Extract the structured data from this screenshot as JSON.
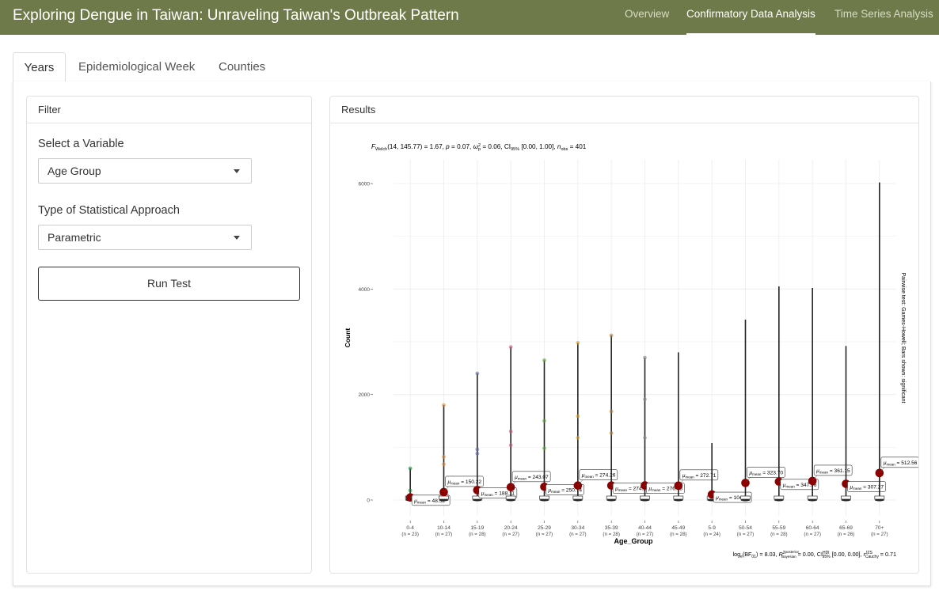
{
  "app": {
    "title": "Exploring Dengue in Taiwan: Unraveling Taiwan's Outbreak Pattern",
    "nav": [
      "Overview",
      "Confirmatory Data Analysis",
      "Time Series Analysis"
    ],
    "active_nav": "Confirmatory Data Analysis"
  },
  "tabs": [
    "Years",
    "Epidemiological Week",
    "Counties"
  ],
  "active_tab": "Years",
  "filter": {
    "header": "Filter",
    "variable_label": "Select a Variable",
    "variable_value": "Age Group",
    "approach_label": "Type of Statistical Approach",
    "approach_value": "Parametric",
    "run_label": "Run Test"
  },
  "results": {
    "header": "Results",
    "chart_data": {
      "type": "violin-box-scatter",
      "subtitle_parts": {
        "stat": "F",
        "stat_sub": "Welch",
        "args": "(14, 145.77) = 1.67, ",
        "p_label": "p",
        "p_val": " = 0.07, ",
        "es_symbol": "ω",
        "es_sub": "p",
        "es_sup": "2",
        "es_val": " = 0.06, CI",
        "ci_sub": "95%",
        "ci_val": " [0.00, 1.00], ",
        "n_label": "n",
        "n_sub": "obs",
        "n_val": " = 401"
      },
      "caption_parts": {
        "pre": "log",
        "pre_sub": "e",
        "bf": "(BF",
        "bf_sub": "01",
        "mid": ") = 8.03, ",
        "r_symbol": "R",
        "r_sup": "2",
        "r_sup2": "posterior",
        "r_sub": "Bayesian",
        "r_val": " = 0.00, CI",
        "ci_sup": "HDI",
        "ci_sub": "95%",
        "ci_val": " [0.00, 0.00], ",
        "rc": "r",
        "rc_sup": "JZS",
        "rc_sub": "Cauchy",
        "rc_val": " = 0.71"
      },
      "xlabel": "Age_Group",
      "ylabel": "Count",
      "right_label": "Pairwise test: Games-Howell; Bars shown: significant",
      "y_ticks": [
        0,
        2000,
        4000,
        6000
      ],
      "ylim": [
        -300,
        6300
      ],
      "mean_label_prefix": "μ",
      "mean_label_sub": "mean",
      "groups": [
        {
          "name": "0-4",
          "n": "(n = 23)",
          "max": 600,
          "mean": 48.52,
          "mean_text": "48.52",
          "points": [
            600,
            180,
            100
          ],
          "color": "#1b8a3c",
          "label_side": "below"
        },
        {
          "name": "10-14",
          "n": "(n = 27)",
          "max": 1800,
          "mean": 150.22,
          "mean_text": "150.22",
          "points": [
            1800,
            820,
            680
          ],
          "color": "#d9853b",
          "label_side": "above"
        },
        {
          "name": "15-19",
          "n": "(n = 28)",
          "max": 2400,
          "mean": 188.11,
          "mean_text": "188.11",
          "points": [
            2400,
            960,
            880
          ],
          "color": "#5c6aa8",
          "label_side": "below"
        },
        {
          "name": "20-24",
          "n": "(n = 27)",
          "max": 2900,
          "mean": 243.07,
          "mean_text": "243.07",
          "points": [
            2900,
            1300,
            1040
          ],
          "color": "#c4557f",
          "label_side": "above"
        },
        {
          "name": "25-29",
          "n": "(n = 27)",
          "max": 2650,
          "mean": 250.74,
          "mean_text": "250.74",
          "points": [
            2650,
            1500,
            980
          ],
          "color": "#5ea13a",
          "label_side": "below"
        },
        {
          "name": "30-34",
          "n": "(n = 27)",
          "max": 2980,
          "mean": 274.26,
          "mean_text": "274.26",
          "points": [
            2980,
            1590,
            1180
          ],
          "color": "#d5a21e",
          "label_side": "above"
        },
        {
          "name": "35-39",
          "n": "(n = 28)",
          "max": 3120,
          "mean": 274.28,
          "mean_text": "274.28",
          "points": [
            3120,
            1680,
            1270
          ],
          "color": "#b08140",
          "label_side": "below"
        },
        {
          "name": "40-44",
          "n": "(n = 27)",
          "max": 2700,
          "mean": 276.48,
          "mean_text": "276.48",
          "points": [
            2700,
            1910,
            1180
          ],
          "color": "#888888",
          "label_side": "below"
        },
        {
          "name": "45-49",
          "n": "(n = 28)",
          "max": 2800,
          "mean": 272.71,
          "mean_text": "272.71",
          "points": [],
          "color": "#333333",
          "label_side": "above"
        },
        {
          "name": "5-9",
          "n": "(n = 24)",
          "max": 1080,
          "mean": 104.38,
          "mean_text": "104.38",
          "points": [],
          "color": "#333333",
          "label_side": "below"
        },
        {
          "name": "50-54",
          "n": "(n = 27)",
          "max": 3420,
          "mean": 323.7,
          "mean_text": "323.70",
          "points": [],
          "color": "#333333",
          "label_side": "above"
        },
        {
          "name": "55-59",
          "n": "(n = 28)",
          "max": 4050,
          "mean": 347.96,
          "mean_text": "347.96",
          "points": [],
          "color": "#333333",
          "label_side": "below"
        },
        {
          "name": "60-64",
          "n": "(n = 27)",
          "max": 4020,
          "mean": 361.15,
          "mean_text": "361.15",
          "points": [],
          "color": "#333333",
          "label_side": "above"
        },
        {
          "name": "65-69",
          "n": "(n = 26)",
          "max": 2920,
          "mean": 307.27,
          "mean_text": "307.27",
          "points": [],
          "color": "#333333",
          "label_side": "below"
        },
        {
          "name": "70+",
          "n": "(n = 27)",
          "max": 6020,
          "mean": 512.56,
          "mean_text": "512.56",
          "points": [],
          "color": "#333333",
          "label_side": "above"
        }
      ],
      "colors": {
        "mean_point": "#8b0000",
        "grid": "#ebebeb",
        "violin": "#222222"
      }
    }
  }
}
